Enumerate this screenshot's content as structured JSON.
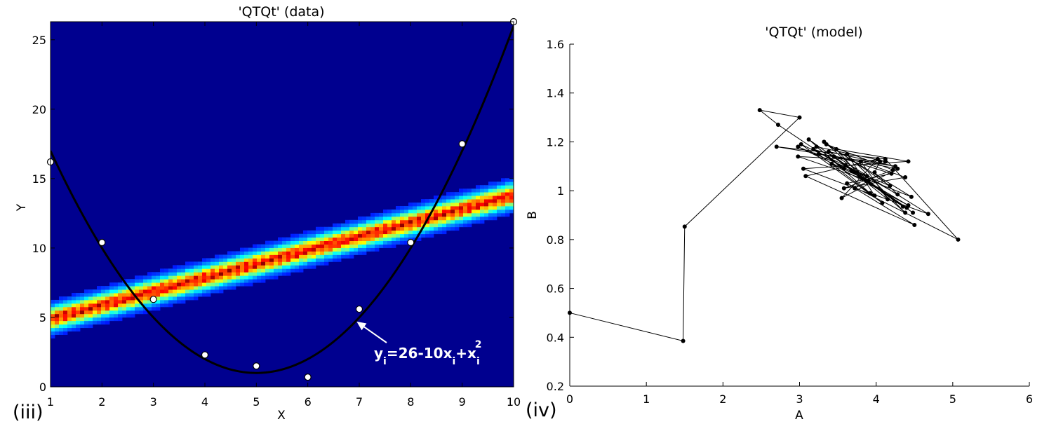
{
  "chart_data": [
    {
      "type": "heatmap",
      "title": "'QTQt' (data)",
      "xlabel": "X",
      "ylabel": "Y",
      "xlim": [
        1,
        10
      ],
      "ylim": [
        0,
        26.3
      ],
      "xticks": [
        "1",
        "2",
        "3",
        "4",
        "5",
        "6",
        "7",
        "8",
        "9",
        "10"
      ],
      "yticks": [
        "0",
        "5",
        "10",
        "15",
        "20",
        "25"
      ],
      "panel_label": "(iii)",
      "colormap": "jet",
      "background_color": "#00008f",
      "band": {
        "intercept": 4.9,
        "slope": 0.99,
        "halfwidth": 0.85
      },
      "curve": {
        "a": 26,
        "b": -10,
        "c": 1
      },
      "points": {
        "x": [
          1,
          2,
          3,
          4,
          5,
          6,
          7,
          8,
          9,
          10
        ],
        "y": [
          16.2,
          10.4,
          6.3,
          2.3,
          1.5,
          0.7,
          5.6,
          10.4,
          17.5,
          26.3
        ]
      },
      "annotation": {
        "y": "y",
        "i1": "i",
        "eq": "=26-10x",
        "i2": "i",
        "plus": "+x",
        "i3": "i",
        "sup": "2",
        "arrow_to": [
          6.95,
          4.7
        ]
      }
    },
    {
      "type": "line",
      "title": "'QTQt' (model)",
      "xlabel": "A",
      "ylabel": "B",
      "xlim": [
        0,
        6
      ],
      "ylim": [
        0.2,
        1.6
      ],
      "xticks": [
        "0",
        "1",
        "2",
        "3",
        "4",
        "5",
        "6"
      ],
      "yticks": [
        "0.2",
        "0.4",
        "0.6",
        "0.8",
        "1",
        "1.2",
        "1.4",
        "1.6"
      ],
      "panel_label": "(iv)",
      "marker": "dot",
      "line_color": "#000000",
      "series": [
        {
          "x": [
            0.0,
            1.48,
            1.5,
            3.0,
            2.48,
            2.72,
            3.58,
            3.22,
            4.12,
            2.98,
            3.82,
            3.48,
            4.42,
            3.05,
            3.98,
            3.62,
            4.38,
            3.32,
            4.18,
            2.98,
            3.9,
            3.72,
            4.5,
            3.08,
            4.02,
            3.55,
            4.28,
            3.25,
            4.08,
            3.02,
            3.88,
            3.42,
            4.42,
            3.18,
            4.2,
            3.62,
            5.07,
            4.12,
            2.7,
            4.25,
            3.38,
            4.68,
            3.92,
            3.12,
            4.35,
            3.68,
            4.48,
            3.45,
            4.15,
            3.8,
            4.38,
            3.58,
            4.22,
            3.35,
            4.46,
            3.78,
            4.4,
            3.6,
            4.28,
            3.98,
            4.05
          ],
          "y": [
            0.5,
            0.385,
            0.853,
            1.3,
            1.33,
            1.27,
            1.09,
            1.18,
            1.12,
            1.14,
            1.05,
            1.17,
            1.12,
            1.09,
            0.98,
            1.15,
            0.91,
            1.2,
            1.02,
            1.18,
            1.04,
            1.01,
            0.86,
            1.06,
            1.13,
            0.97,
            1.09,
            1.15,
            0.95,
            1.19,
            1.06,
            1.11,
            0.94,
            1.17,
            1.07,
            1.03,
            0.8,
            1.13,
            1.18,
            1.1,
            1.16,
            0.905,
            0.99,
            1.21,
            0.935,
            1.08,
            0.91,
            1.14,
            0.965,
            1.12,
            1.055,
            1.01,
            1.085,
            1.19,
            0.975,
            1.06,
            0.93,
            1.105,
            0.985,
            1.075,
            1.12
          ]
        }
      ]
    }
  ]
}
